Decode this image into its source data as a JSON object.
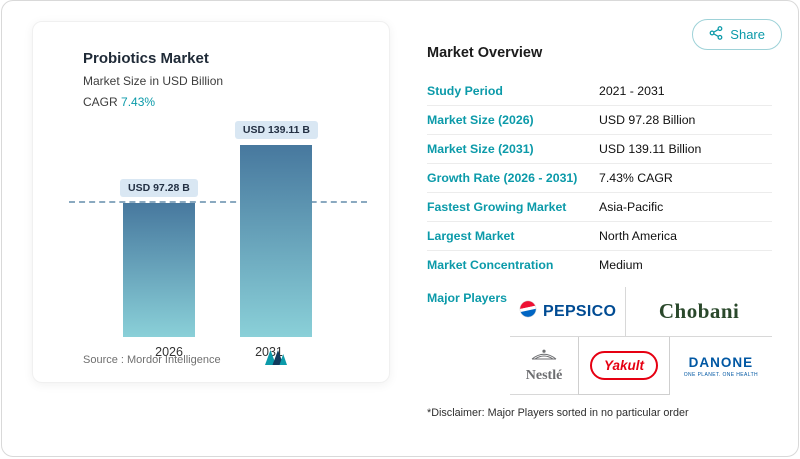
{
  "chart_data": {
    "type": "bar",
    "title": "Probiotics Market",
    "subtitle": "Market Size in USD Billion",
    "cagr_label": "CAGR",
    "cagr_value": "7.43%",
    "categories": [
      "2026",
      "2031"
    ],
    "values": [
      97.28,
      139.11
    ],
    "value_labels": [
      "USD 97.28 B",
      "USD 139.11 B"
    ],
    "unit": "USD Billion",
    "ylim": [
      0,
      150
    ],
    "reference_line": 97.28,
    "grid": false,
    "legend": "none",
    "source": "Source :  Mordor Intelligence"
  },
  "share": {
    "label": "Share"
  },
  "overview": {
    "title": "Market Overview",
    "rows": [
      {
        "label": "Study Period",
        "value": "2021 - 2031"
      },
      {
        "label": "Market Size (2026)",
        "value": "USD 97.28 Billion"
      },
      {
        "label": "Market Size (2031)",
        "value": "USD 139.11 Billion"
      },
      {
        "label": "Growth Rate (2026 - 2031)",
        "value": "7.43% CAGR"
      },
      {
        "label": "Fastest Growing Market",
        "value": "Asia-Pacific"
      },
      {
        "label": "Largest Market",
        "value": "North America"
      },
      {
        "label": "Market Concentration",
        "value": "Medium"
      }
    ],
    "major_players_label": "Major Players",
    "players": [
      {
        "name": "PEPSICO"
      },
      {
        "name": "Chobani"
      },
      {
        "name": "Nestlé"
      },
      {
        "name": "Yakult"
      },
      {
        "name": "DANONE",
        "tagline": "ONE PLANET. ONE HEALTH"
      }
    ],
    "disclaimer": "*Disclaimer: Major Players sorted in no particular order"
  },
  "colors": {
    "accent_teal": "#0b9aa9",
    "bar_gradient_top": "#47789e",
    "bar_gradient_bottom": "#8ad0d8",
    "value_label_bg": "#d9e7f3",
    "pepsico_blue": "#004b93",
    "chobani_green": "#2a482b",
    "nestle_gray": "#6d6e71",
    "yakult_red": "#e60012",
    "danone_blue": "#0057a3"
  }
}
